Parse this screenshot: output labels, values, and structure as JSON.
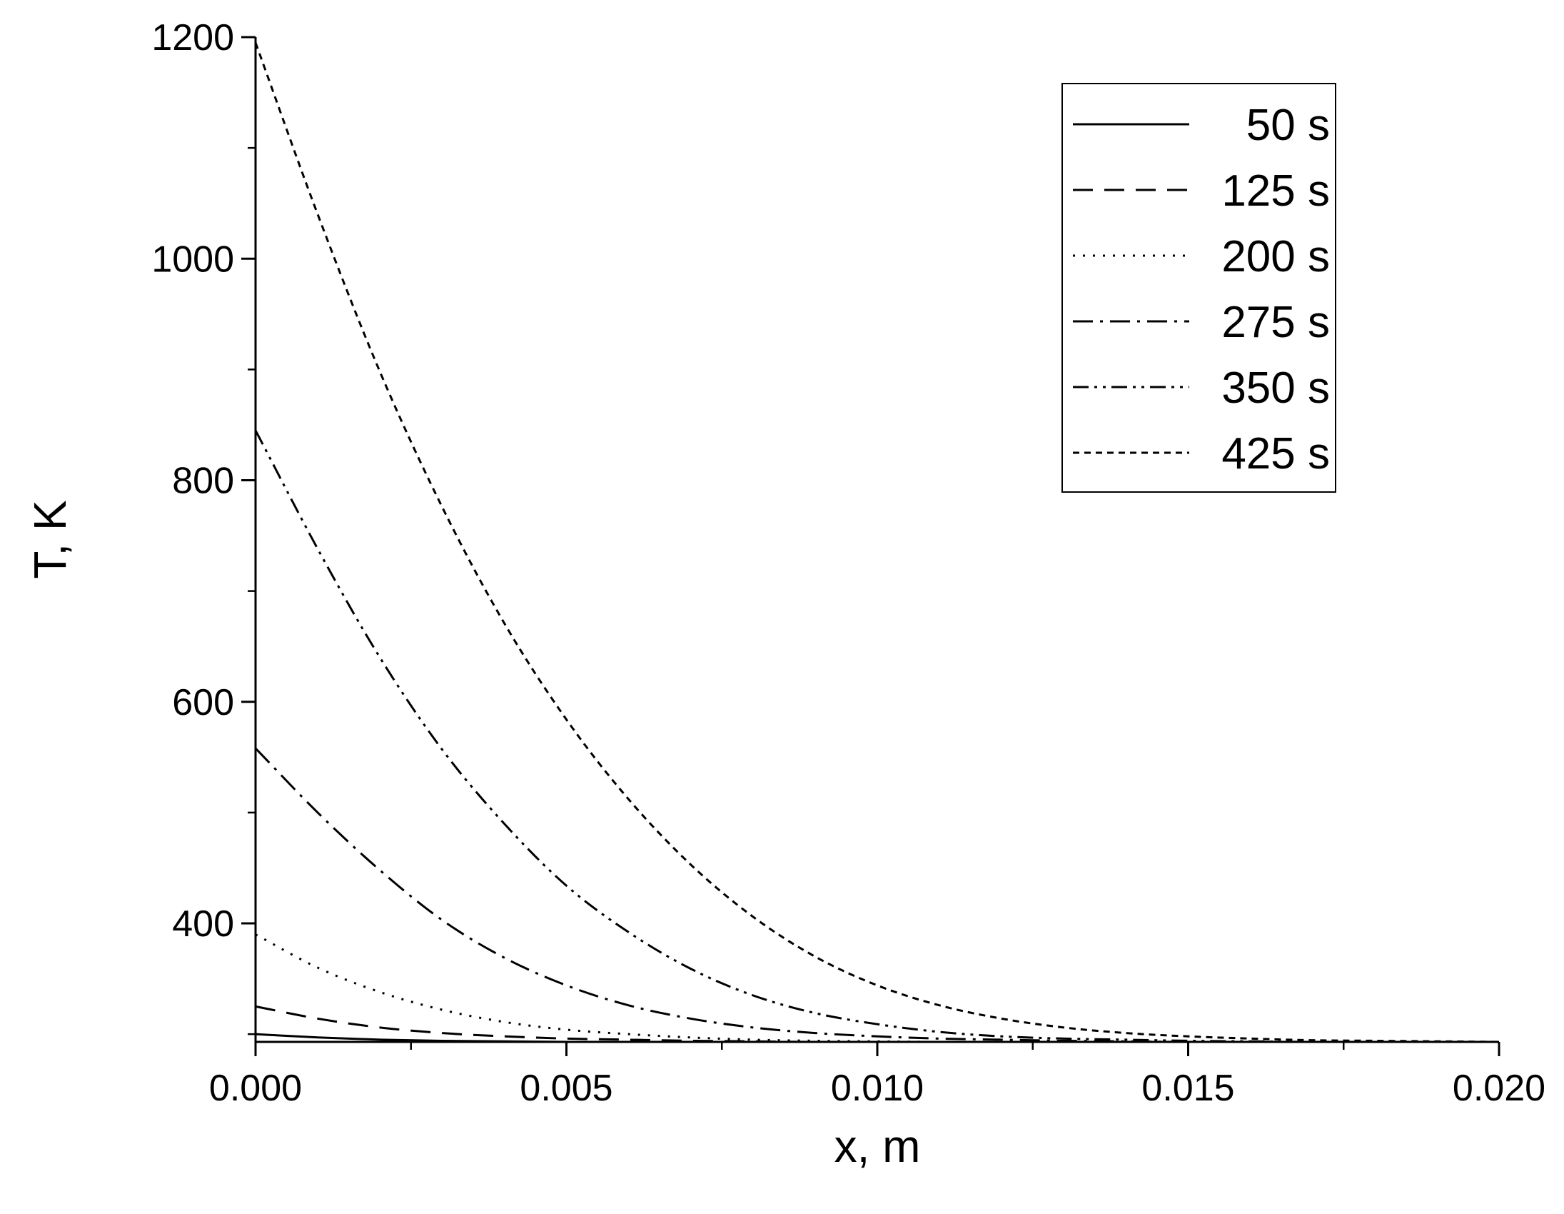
{
  "chart_data": {
    "type": "line",
    "xlabel": "x, m",
    "ylabel": "T, K",
    "xlim": [
      0,
      0.02
    ],
    "ylim": [
      293,
      1200
    ],
    "x_ticks": [
      "0.000",
      "0.005",
      "0.010",
      "0.015",
      "0.020"
    ],
    "y_ticks": [
      "400",
      "600",
      "800",
      "1000",
      "1200"
    ],
    "grid": false,
    "legend_position": "top-right",
    "x": [
      0,
      0.001,
      0.002,
      0.003,
      0.004,
      0.005,
      0.006,
      0.007,
      0.008,
      0.009,
      0.01,
      0.011,
      0.012,
      0.013,
      0.014,
      0.015,
      0.016,
      0.017,
      0.018,
      0.019,
      0.02
    ],
    "series": [
      {
        "name": "50 s",
        "dash": "solid",
        "values": [
          300,
          297,
          295,
          294,
          293.5,
          293,
          293,
          293,
          293,
          293,
          293,
          293,
          293,
          293,
          293,
          293,
          293,
          293,
          293,
          293,
          293
        ]
      },
      {
        "name": "125 s",
        "dash": "dashed",
        "values": [
          325,
          314,
          306,
          301,
          298,
          296,
          295,
          294,
          293.5,
          293,
          293,
          293,
          293,
          293,
          293,
          293,
          293,
          293,
          293,
          293,
          293
        ]
      },
      {
        "name": "200 s",
        "dash": "dotted",
        "values": [
          390,
          360,
          338,
          322,
          311,
          304,
          300,
          297,
          295,
          294,
          293.5,
          293,
          293,
          293,
          293,
          293,
          293,
          293,
          293,
          293,
          293
        ]
      },
      {
        "name": "275 s",
        "dash": "dash-dot",
        "values": [
          558,
          500,
          448,
          403,
          369,
          344,
          326,
          314,
          306,
          301,
          298,
          296,
          295,
          294,
          293.5,
          293,
          293,
          293,
          293,
          293,
          293
        ]
      },
      {
        "name": "350 s",
        "dash": "dash-dot-dot",
        "values": [
          845,
          738,
          640,
          557,
          490,
          434,
          392,
          359,
          335,
          319,
          309,
          302,
          298,
          296,
          295,
          294,
          293.5,
          293,
          293,
          293,
          293
        ]
      },
      {
        "name": "425 s",
        "dash": "short-dash",
        "values": [
          1195,
          1040,
          898,
          776,
          671,
          584,
          512,
          453,
          406,
          370,
          344,
          326,
          314,
          306,
          301,
          298,
          296,
          294.5,
          294,
          293.5,
          293
        ]
      }
    ]
  }
}
